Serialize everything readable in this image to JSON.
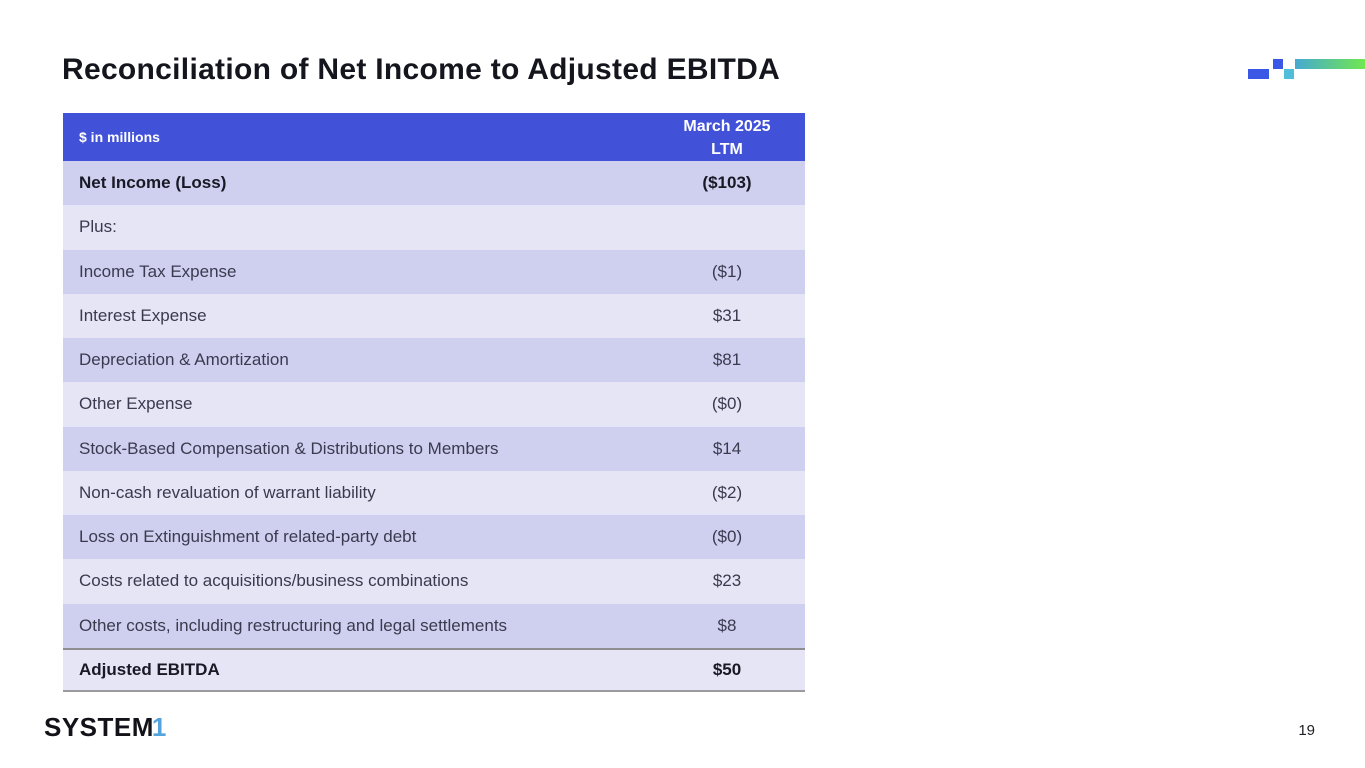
{
  "slide": {
    "title": "Reconciliation of Net Income to Adjusted EBITDA",
    "page_number": "19"
  },
  "logo": {
    "text": "SYSTEM",
    "accent": "1"
  },
  "table": {
    "header": {
      "left": "$ in millions",
      "right_line1": "March 2025",
      "right_line2": "LTM"
    },
    "rows": [
      {
        "label": "Net Income (Loss)",
        "value": "($103)"
      },
      {
        "label": "Plus:",
        "value": ""
      },
      {
        "label": "Income Tax Expense",
        "value": "($1)"
      },
      {
        "label": "Interest Expense",
        "value": "$31"
      },
      {
        "label": "Depreciation & Amortization",
        "value": "$81"
      },
      {
        "label": "Other Expense",
        "value": "($0)"
      },
      {
        "label": "Stock-Based Compensation & Distributions to Members",
        "value": "$14"
      },
      {
        "label": "Non-cash revaluation of warrant liability",
        "value": "($2)"
      },
      {
        "label": "Loss on Extinguishment of related-party debt",
        "value": "($0)"
      },
      {
        "label": "Costs related to acquisitions/business combinations",
        "value": "$23"
      },
      {
        "label": "Other costs, including restructuring and legal settlements",
        "value": "$8"
      },
      {
        "label": "Adjusted EBITDA",
        "value": "$50"
      }
    ]
  },
  "colors": {
    "header_bg": "#4252d8",
    "row_medium": "#cfd0ef",
    "row_light": "#e5e5f5",
    "total_border": "#8e8e92",
    "logo_accent": "#55a3dc",
    "deco_blue": "#3b57e6",
    "deco_teal": "#52bdd8",
    "deco_gradient_start": "#46a9d1",
    "deco_gradient_end": "#70e750"
  }
}
